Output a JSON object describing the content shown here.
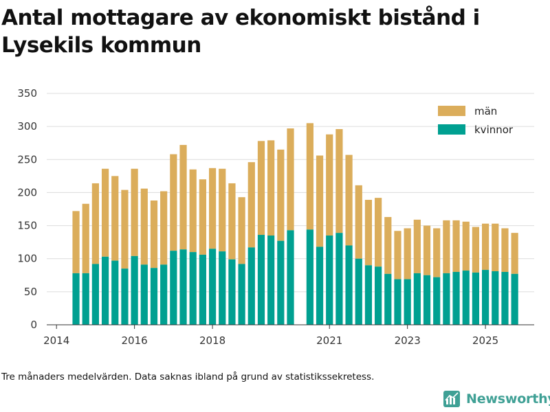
{
  "chart_data": {
    "type": "bar",
    "stacked": true,
    "title": "Antal mottagare av ekonomiskt bistånd i Lysekils kommun",
    "xlabel": "",
    "ylabel": "",
    "ylim": [
      0,
      350
    ],
    "yticks": [
      0,
      50,
      100,
      150,
      200,
      250,
      300,
      350
    ],
    "xlim": [
      2014.0,
      2026.5
    ],
    "xticks": [
      {
        "label": "2014",
        "value": 2014.25
      },
      {
        "label": "2016",
        "value": 2016.25
      },
      {
        "label": "2018",
        "value": 2018.25
      },
      {
        "label": "2021",
        "value": 2021.25
      },
      {
        "label": "2023",
        "value": 2023.25
      },
      {
        "label": "2025",
        "value": 2025.25
      }
    ],
    "grid": true,
    "legend_position": "top-right",
    "x": [
      2014.75,
      2015.0,
      2015.25,
      2015.5,
      2015.75,
      2016.0,
      2016.25,
      2016.5,
      2016.75,
      2017.0,
      2017.25,
      2017.5,
      2017.75,
      2018.0,
      2018.25,
      2018.5,
      2018.75,
      2019.0,
      2019.25,
      2019.5,
      2019.75,
      2020.0,
      2020.25,
      2020.75,
      2021.0,
      2021.25,
      2021.5,
      2021.75,
      2022.0,
      2022.25,
      2022.5,
      2022.75,
      2023.0,
      2023.25,
      2023.5,
      2023.75,
      2024.0,
      2024.25,
      2024.5,
      2024.75,
      2025.0,
      2025.25,
      2025.5,
      2025.75,
      2026.0
    ],
    "series": [
      {
        "name": "kvinnor",
        "color": "#00a091",
        "values": [
          78,
          78,
          92,
          103,
          97,
          85,
          104,
          91,
          86,
          91,
          112,
          114,
          110,
          106,
          115,
          111,
          99,
          92,
          117,
          136,
          135,
          127,
          143,
          144,
          118,
          135,
          139,
          120,
          100,
          90,
          88,
          77,
          69,
          69,
          78,
          75,
          72,
          78,
          80,
          82,
          79,
          83,
          81,
          80,
          77
        ]
      },
      {
        "name": "män",
        "color": "#dbad5b",
        "values": [
          94,
          105,
          122,
          133,
          128,
          119,
          132,
          115,
          102,
          111,
          146,
          158,
          125,
          114,
          122,
          125,
          115,
          101,
          129,
          142,
          144,
          138,
          154,
          161,
          138,
          153,
          157,
          137,
          111,
          99,
          104,
          86,
          73,
          77,
          81,
          75,
          74,
          80,
          78,
          74,
          69,
          70,
          72,
          66,
          62
        ]
      }
    ],
    "legend": [
      "män",
      "kvinnor"
    ]
  },
  "footer": {
    "note": "Tre månaders medelvärden. Data saknas ibland på grund av statistikssekretess.",
    "brand": "Newsworthy"
  }
}
